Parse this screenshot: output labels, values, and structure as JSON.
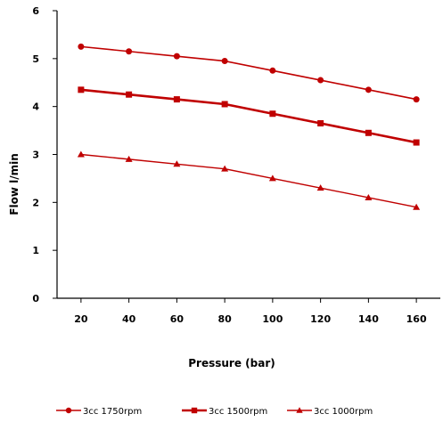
{
  "chart_data": {
    "type": "line",
    "title": "",
    "xlabel": "Pressure (bar)",
    "ylabel": "Flow l/min",
    "x": [
      20,
      40,
      60,
      80,
      100,
      120,
      140,
      160
    ],
    "xlim": [
      10,
      170
    ],
    "ylim": [
      0,
      6
    ],
    "yticks": [
      0,
      1,
      2,
      3,
      4,
      5,
      6
    ],
    "xticks": [
      20,
      40,
      60,
      80,
      100,
      120,
      140,
      160
    ],
    "grid": false,
    "legend_position": "bottom",
    "series": [
      {
        "name": "3cc 1750rpm",
        "marker": "circle",
        "color": "#c00000",
        "values": [
          5.25,
          5.15,
          5.05,
          4.95,
          4.75,
          4.55,
          4.35,
          4.15
        ]
      },
      {
        "name": "3cc 1500rpm",
        "marker": "square",
        "color": "#c00000",
        "values": [
          4.35,
          4.25,
          4.15,
          4.05,
          3.85,
          3.65,
          3.45,
          3.25
        ]
      },
      {
        "name": "3cc 1000rpm",
        "marker": "triangle",
        "color": "#c00000",
        "values": [
          3.0,
          2.9,
          2.8,
          2.7,
          2.5,
          2.3,
          2.1,
          1.9
        ]
      }
    ]
  }
}
